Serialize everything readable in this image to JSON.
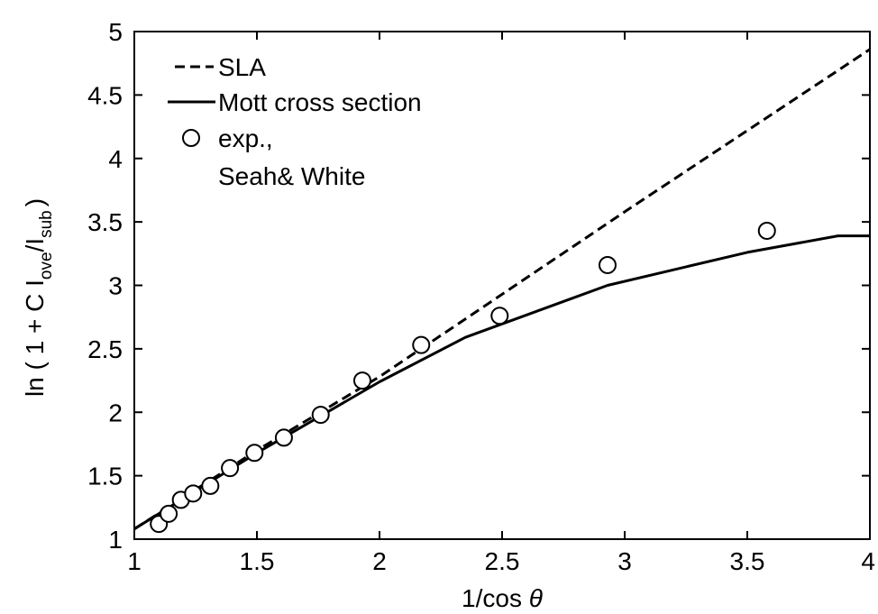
{
  "chart_data": {
    "type": "line",
    "title": "",
    "xlabel": "1/cos θ",
    "xlabel_parts": {
      "prefix": "1/cos ",
      "symbol": "θ"
    },
    "ylabel": "ln ( 1 + C I_ove/I_sub )",
    "ylabel_parts": {
      "p1": "ln ( 1 + C I",
      "sub1": "ove",
      "p2": "/I",
      "sub2": "sub",
      "p3": ")"
    },
    "xlim": [
      1,
      4
    ],
    "ylim": [
      1,
      5
    ],
    "xticks": [
      1,
      1.5,
      2,
      2.5,
      3,
      3.5,
      4
    ],
    "yticks": [
      1,
      1.5,
      2,
      2.5,
      3,
      3.5,
      4,
      4.5,
      5
    ],
    "xtick_labels": [
      "1",
      "1.5",
      "2",
      "2.5",
      "3",
      "3.5",
      "4"
    ],
    "ytick_labels": [
      "1",
      "1.5",
      "2",
      "2.5",
      "3",
      "3.5",
      "4",
      "4.5",
      "5"
    ],
    "grid": false,
    "legend_position": "top-left",
    "legend_items": {
      "sla": "SLA",
      "mott": "Mott cross section",
      "exp_line1": "exp.,",
      "exp_line2": "Seah& White"
    },
    "series": [
      {
        "name": "SLA",
        "style": "dashed",
        "color": "#000000",
        "x": [
          1.0,
          1.5,
          2.0,
          2.5,
          3.0,
          3.5,
          4.0
        ],
        "y": [
          1.08,
          1.7,
          2.28,
          2.93,
          3.58,
          4.22,
          4.86
        ]
      },
      {
        "name": "Mott cross section",
        "style": "solid",
        "color": "#000000",
        "x": [
          1.0,
          1.5,
          2.0,
          2.35,
          2.93,
          3.5,
          3.87,
          4.0
        ],
        "y": [
          1.08,
          1.68,
          2.24,
          2.59,
          3.0,
          3.26,
          3.39,
          3.39
        ]
      },
      {
        "name": "exp., Seah& White",
        "style": "markers",
        "marker": "open-circle",
        "color": "#000000",
        "x": [
          1.1,
          1.14,
          1.19,
          1.24,
          1.31,
          1.39,
          1.49,
          1.61,
          1.76,
          1.93,
          2.17,
          2.49,
          2.93,
          3.58
        ],
        "y": [
          1.12,
          1.2,
          1.31,
          1.36,
          1.42,
          1.56,
          1.68,
          1.8,
          1.98,
          2.25,
          2.53,
          2.76,
          3.16,
          3.43
        ]
      }
    ]
  }
}
